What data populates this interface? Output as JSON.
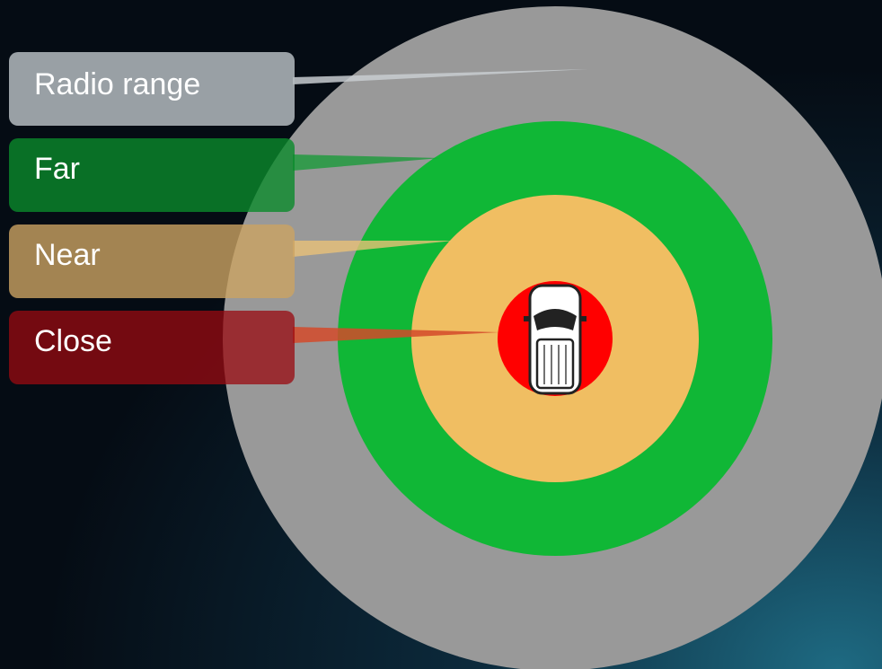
{
  "zones": [
    {
      "label": "Radio range"
    },
    {
      "label": "Far"
    },
    {
      "label": "Near"
    },
    {
      "label": "Close"
    }
  ]
}
